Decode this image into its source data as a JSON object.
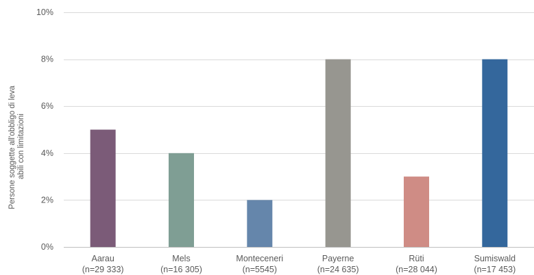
{
  "chart_data": {
    "type": "bar",
    "title": "",
    "xlabel": "",
    "ylabel_lines": [
      "Persone soggette all'obbligo di leva",
      "abili con limitazioni"
    ],
    "ylim": [
      0,
      10
    ],
    "y_ticks": [
      0,
      2,
      4,
      6,
      8,
      10
    ],
    "y_tick_labels": [
      "0%",
      "2%",
      "4%",
      "6%",
      "8%",
      "10%"
    ],
    "grid": true,
    "legend": "none",
    "categories": [
      {
        "name": "Aarau",
        "n": "(n=29 333)",
        "value": 5,
        "color": "#7b5b78"
      },
      {
        "name": "Mels",
        "n": "(n=16 305)",
        "value": 4,
        "color": "#7f9e94"
      },
      {
        "name": "Monteceneri",
        "n": "(n=5545)",
        "value": 2,
        "color": "#6586ab"
      },
      {
        "name": "Payerne",
        "n": "(n=24 635)",
        "value": 8,
        "color": "#979690"
      },
      {
        "name": "Rüti",
        "n": "(n=28 044)",
        "value": 3,
        "color": "#cf8c85"
      },
      {
        "name": "Sumiswald",
        "n": "(n=17 453)",
        "value": 8,
        "color": "#34679c"
      }
    ]
  }
}
